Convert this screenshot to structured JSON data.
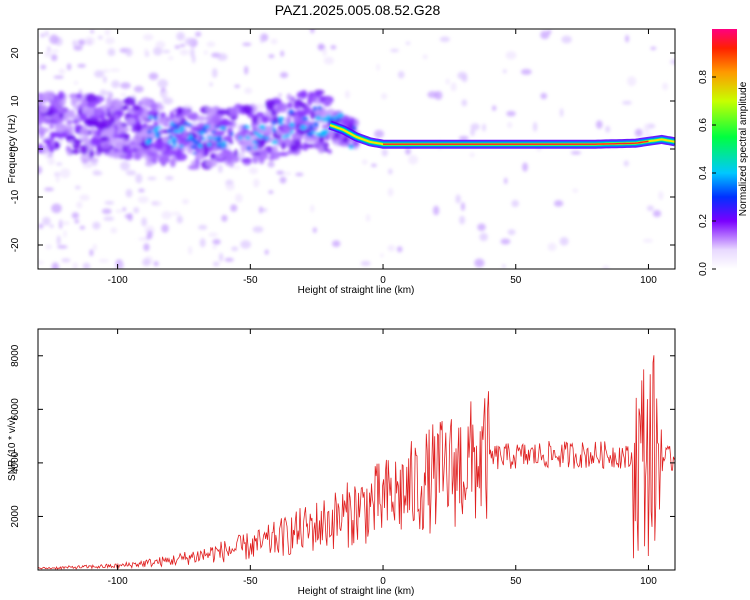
{
  "title": "PAZ1.2025.005.08.52.G28",
  "chart_data": [
    {
      "type": "heatmap",
      "xlabel": "Height of straight line (km)",
      "ylabel": "Frequency (Hz)",
      "xlim": [
        -130,
        110
      ],
      "ylim": [
        -25,
        25
      ],
      "xticks": [
        -100,
        -50,
        0,
        50,
        100
      ],
      "yticks": [
        -20,
        -10,
        0,
        10,
        20
      ],
      "colorbar": {
        "label": "Normalized spectral amplitude",
        "lim": [
          0,
          1
        ],
        "ticks": [
          "0.0",
          "0.2",
          "0.4",
          "0.6",
          "0.8"
        ]
      },
      "ridge": [
        {
          "x": -130,
          "y": 6
        },
        {
          "x": -110,
          "y": 5
        },
        {
          "x": -90,
          "y": 4
        },
        {
          "x": -70,
          "y": 2
        },
        {
          "x": -50,
          "y": 3
        },
        {
          "x": -35,
          "y": 5
        },
        {
          "x": -25,
          "y": 6
        },
        {
          "x": -15,
          "y": 4
        },
        {
          "x": -10,
          "y": 2.5
        },
        {
          "x": -5,
          "y": 1.5
        },
        {
          "x": 0,
          "y": 1
        },
        {
          "x": 10,
          "y": 1
        },
        {
          "x": 50,
          "y": 1
        },
        {
          "x": 80,
          "y": 1
        },
        {
          "x": 95,
          "y": 1.2
        },
        {
          "x": 105,
          "y": 2
        },
        {
          "x": 110,
          "y": 1.5
        }
      ]
    },
    {
      "type": "line",
      "xlabel": "Height of straight line (km)",
      "ylabel": "SNR (10 * v/v)",
      "xlim": [
        -130,
        110
      ],
      "ylim": [
        0,
        9000
      ],
      "xticks": [
        -100,
        -50,
        0,
        50,
        100
      ],
      "yticks": [
        2000,
        4000,
        6000,
        8000
      ],
      "series_color": "#e02020",
      "envelope": [
        {
          "x": -130,
          "y": 60
        },
        {
          "x": -100,
          "y": 150
        },
        {
          "x": -80,
          "y": 350
        },
        {
          "x": -60,
          "y": 700
        },
        {
          "x": -45,
          "y": 1000
        },
        {
          "x": -30,
          "y": 1500
        },
        {
          "x": -20,
          "y": 1800
        },
        {
          "x": -10,
          "y": 2200
        },
        {
          "x": 0,
          "y": 2600
        },
        {
          "x": 10,
          "y": 3000
        },
        {
          "x": 20,
          "y": 3500
        },
        {
          "x": 30,
          "y": 3900
        },
        {
          "x": 40,
          "y": 4200
        },
        {
          "x": 60,
          "y": 4300
        },
        {
          "x": 80,
          "y": 4300
        },
        {
          "x": 90,
          "y": 4300
        },
        {
          "x": 95,
          "y": 4000
        },
        {
          "x": 100,
          "y": 4500
        },
        {
          "x": 104,
          "y": 4200
        },
        {
          "x": 110,
          "y": 4100
        }
      ]
    }
  ]
}
